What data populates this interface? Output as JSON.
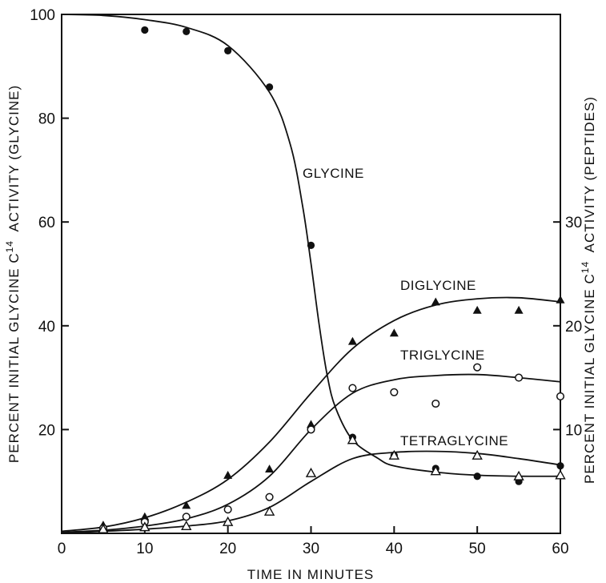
{
  "chart_data": {
    "type": "scatter",
    "x_label": "TIME IN MINUTES",
    "y_left_label": "PERCENT INITIAL GLYCINE C",
    "y_left_label_sup": "14",
    "y_left_label_tail": "ACTIVITY (GLYCINE)",
    "y_right_label": "PERCENT INITIAL GLYCINE C",
    "y_right_label_sup": "14",
    "y_right_label_tail": "ACTIVITY (PEPTIDES)",
    "xlim": [
      0,
      60
    ],
    "ylim_left": [
      0,
      100
    ],
    "ylim_right": [
      0,
      50
    ],
    "x_ticks": [
      0,
      10,
      20,
      30,
      40,
      50,
      60
    ],
    "y_left_ticks": [
      20,
      40,
      60,
      80,
      100
    ],
    "y_left_tick_labels": [
      "20",
      "40",
      "60",
      "80",
      "100"
    ],
    "y_left_zero_label": "0",
    "y_right_ticks": [
      10,
      20,
      30
    ],
    "y_right_tick_labels": [
      "10",
      "20",
      "30"
    ],
    "grid": false,
    "series": [
      {
        "name": "GLYCINE",
        "axis": "left",
        "marker": "filled-circle",
        "points": [
          [
            10,
            97
          ],
          [
            15,
            96.7
          ],
          [
            20,
            93
          ],
          [
            25,
            86
          ],
          [
            30,
            55.5
          ],
          [
            35,
            18.5
          ],
          [
            40,
            15
          ],
          [
            45,
            12.5
          ],
          [
            50,
            11
          ],
          [
            55,
            10
          ],
          [
            60,
            13
          ]
        ],
        "curve": [
          [
            0,
            100
          ],
          [
            5,
            99.8
          ],
          [
            10,
            99
          ],
          [
            15,
            97.5
          ],
          [
            20,
            94
          ],
          [
            25,
            85
          ],
          [
            27.5,
            75
          ],
          [
            29,
            63
          ],
          [
            30,
            52
          ],
          [
            31,
            40
          ],
          [
            32,
            30
          ],
          [
            33,
            24
          ],
          [
            35,
            18
          ],
          [
            38,
            14.5
          ],
          [
            40,
            13
          ],
          [
            45,
            11.8
          ],
          [
            50,
            11.2
          ],
          [
            55,
            11
          ],
          [
            60,
            11
          ]
        ]
      },
      {
        "name": "DIGLYCINE",
        "axis": "right",
        "marker": "filled-triangle",
        "points": [
          [
            5,
            0.8
          ],
          [
            10,
            1.6
          ],
          [
            15,
            2.7
          ],
          [
            20,
            5.6
          ],
          [
            25,
            6.2
          ],
          [
            30,
            10.5
          ],
          [
            35,
            18.5
          ],
          [
            40,
            19.3
          ],
          [
            45,
            22.3
          ],
          [
            50,
            21.5
          ],
          [
            55,
            21.5
          ],
          [
            60,
            22.5
          ]
        ],
        "curve": [
          [
            0,
            0.2
          ],
          [
            5,
            0.6
          ],
          [
            10,
            1.5
          ],
          [
            15,
            3
          ],
          [
            20,
            5.2
          ],
          [
            25,
            8.8
          ],
          [
            30,
            13.5
          ],
          [
            35,
            17.8
          ],
          [
            40,
            20.5
          ],
          [
            45,
            22
          ],
          [
            50,
            22.6
          ],
          [
            55,
            22.7
          ],
          [
            60,
            22.3
          ]
        ]
      },
      {
        "name": "TRIGLYCINE",
        "axis": "right",
        "marker": "open-circle",
        "points": [
          [
            5,
            0.5
          ],
          [
            10,
            1.1
          ],
          [
            15,
            1.6
          ],
          [
            20,
            2.3
          ],
          [
            25,
            3.5
          ],
          [
            30,
            10
          ],
          [
            35,
            14
          ],
          [
            40,
            13.6
          ],
          [
            45,
            12.5
          ],
          [
            50,
            16
          ],
          [
            55,
            15
          ],
          [
            60,
            13.2
          ]
        ],
        "curve": [
          [
            0,
            0.1
          ],
          [
            5,
            0.3
          ],
          [
            10,
            0.7
          ],
          [
            15,
            1.4
          ],
          [
            20,
            2.8
          ],
          [
            25,
            5.5
          ],
          [
            30,
            10
          ],
          [
            35,
            13.5
          ],
          [
            40,
            14.8
          ],
          [
            45,
            15.2
          ],
          [
            50,
            15.3
          ],
          [
            55,
            15
          ],
          [
            60,
            14.6
          ]
        ]
      },
      {
        "name": "TETRAGLYCINE",
        "axis": "right",
        "marker": "open-triangle",
        "points": [
          [
            5,
            0.4
          ],
          [
            10,
            0.6
          ],
          [
            15,
            0.7
          ],
          [
            20,
            1.1
          ],
          [
            25,
            2.1
          ],
          [
            30,
            5.8
          ],
          [
            35,
            9
          ],
          [
            40,
            7.5
          ],
          [
            45,
            6
          ],
          [
            50,
            7.5
          ],
          [
            55,
            5.5
          ],
          [
            60,
            5.6
          ]
        ],
        "curve": [
          [
            0,
            0.05
          ],
          [
            5,
            0.2
          ],
          [
            10,
            0.4
          ],
          [
            15,
            0.7
          ],
          [
            20,
            1.2
          ],
          [
            25,
            2.5
          ],
          [
            30,
            5
          ],
          [
            35,
            7.2
          ],
          [
            40,
            7.8
          ],
          [
            45,
            7.9
          ],
          [
            50,
            7.7
          ],
          [
            55,
            7.2
          ],
          [
            60,
            6.6
          ]
        ]
      }
    ]
  }
}
